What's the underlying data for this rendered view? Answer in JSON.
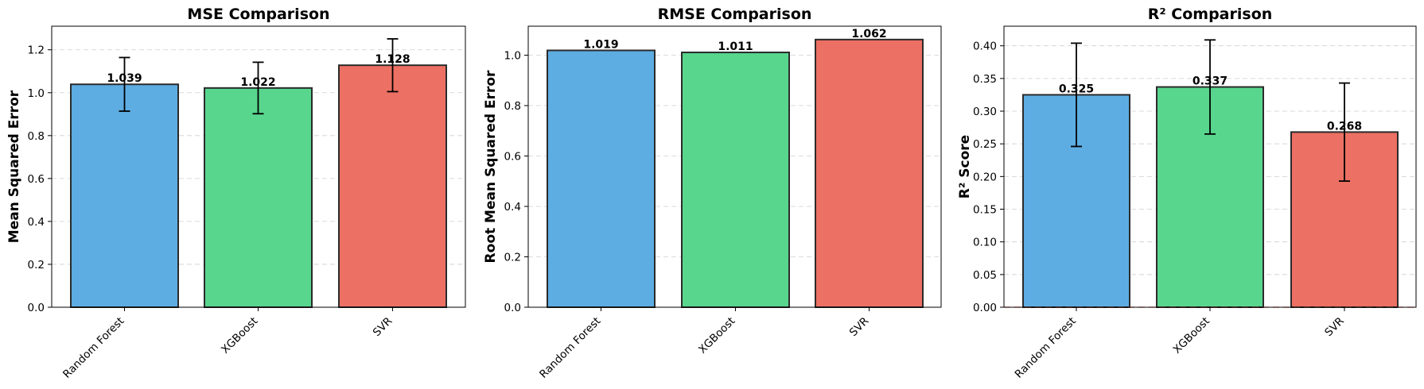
{
  "chart_data": [
    {
      "type": "bar",
      "title": "MSE Comparison",
      "xlabel": "",
      "ylabel": "Mean Squared Error",
      "categories": [
        "Random Forest",
        "XGBoost",
        "SVR"
      ],
      "values": [
        1.039,
        1.022,
        1.128
      ],
      "value_labels": [
        "1.039",
        "1.022",
        "1.128"
      ],
      "error": [
        0.125,
        0.12,
        0.123
      ],
      "colors": [
        "#5dade2",
        "#58d68d",
        "#ec7063"
      ],
      "ylim": [
        0,
        1.31
      ],
      "yticks": [
        0.0,
        0.2,
        0.4,
        0.6,
        0.8,
        1.0,
        1.2
      ],
      "ytick_labels": [
        "0.0",
        "0.2",
        "0.4",
        "0.6",
        "0.8",
        "1.0",
        "1.2"
      ],
      "grid": true
    },
    {
      "type": "bar",
      "title": "RMSE Comparison",
      "xlabel": "",
      "ylabel": "Root Mean Squared Error",
      "categories": [
        "Random Forest",
        "XGBoost",
        "SVR"
      ],
      "values": [
        1.019,
        1.011,
        1.062
      ],
      "value_labels": [
        "1.019",
        "1.011",
        "1.062"
      ],
      "colors": [
        "#5dade2",
        "#58d68d",
        "#ec7063"
      ],
      "ylim": [
        0,
        1.115
      ],
      "yticks": [
        0.0,
        0.2,
        0.4,
        0.6,
        0.8,
        1.0
      ],
      "ytick_labels": [
        "0.0",
        "0.2",
        "0.4",
        "0.6",
        "0.8",
        "1.0"
      ],
      "grid": true
    },
    {
      "type": "bar",
      "title": "R² Comparison",
      "xlabel": "",
      "ylabel": "R² Score",
      "categories": [
        "Random Forest",
        "XGBoost",
        "SVR"
      ],
      "values": [
        0.325,
        0.337,
        0.268
      ],
      "value_labels": [
        "0.325",
        "0.337",
        "0.268"
      ],
      "error": [
        0.079,
        0.072,
        0.075
      ],
      "colors": [
        "#5dade2",
        "#58d68d",
        "#ec7063"
      ],
      "ylim": [
        0,
        0.43
      ],
      "yticks": [
        0.0,
        0.05,
        0.1,
        0.15,
        0.2,
        0.25,
        0.3,
        0.35,
        0.4
      ],
      "ytick_labels": [
        "0.00",
        "0.05",
        "0.10",
        "0.15",
        "0.20",
        "0.25",
        "0.30",
        "0.35",
        "0.40"
      ],
      "grid": true,
      "reference_line": {
        "y": 0,
        "color": "#ec7063"
      }
    }
  ]
}
